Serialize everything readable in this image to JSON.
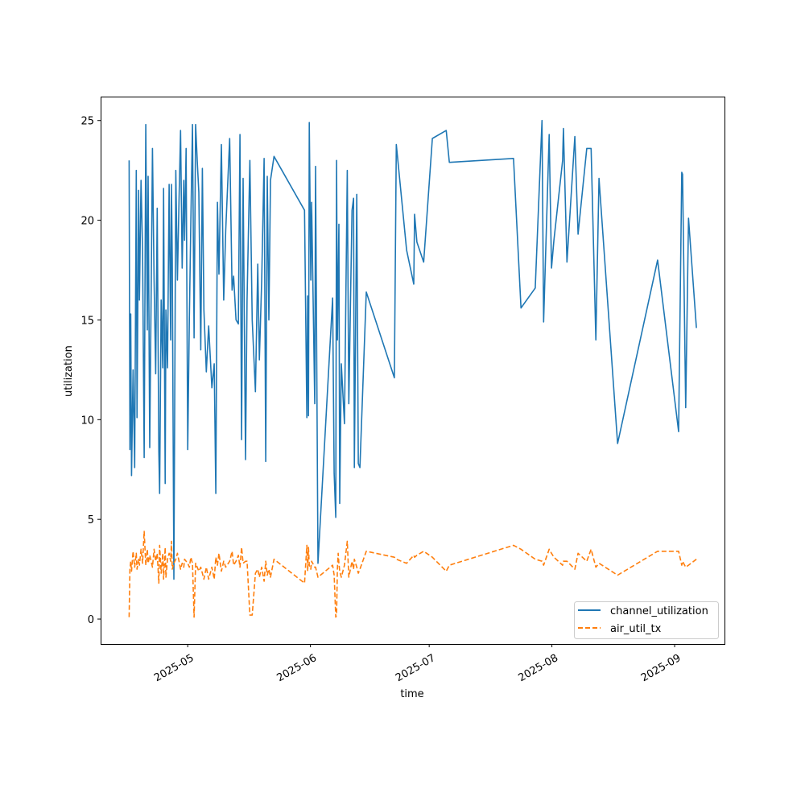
{
  "chart_data": {
    "type": "line",
    "title": "",
    "xlabel": "time",
    "ylabel": "utilization",
    "x_unit": "days since 2025-05-01",
    "xlim": [
      -22.0,
      135.6
    ],
    "ylim": [
      -1.25,
      26.2
    ],
    "grid": false,
    "legend_placement": "lower-right",
    "xticks": [
      {
        "value": 0,
        "label": "2025-05"
      },
      {
        "value": 31,
        "label": "2025-06"
      },
      {
        "value": 61,
        "label": "2025-07"
      },
      {
        "value": 92,
        "label": "2025-08"
      },
      {
        "value": 123,
        "label": "2025-09"
      }
    ],
    "yticks": [
      {
        "value": 0,
        "label": "0"
      },
      {
        "value": 5,
        "label": "5"
      },
      {
        "value": 10,
        "label": "10"
      },
      {
        "value": 15,
        "label": "15"
      },
      {
        "value": 20,
        "label": "20"
      },
      {
        "value": 25,
        "label": "25"
      }
    ],
    "x": [
      -14.8,
      -14.6,
      -14.4,
      -14.2,
      -13.8,
      -13.4,
      -13.0,
      -12.8,
      -12.4,
      -12.2,
      -11.8,
      -11.4,
      -11.0,
      -10.6,
      -10.2,
      -10.0,
      -9.6,
      -8.9,
      -8.5,
      -8.1,
      -7.7,
      -7.3,
      -7.1,
      -6.7,
      -6.3,
      -6.1,
      -5.7,
      -5.5,
      -5.1,
      -4.7,
      -4.3,
      -4.1,
      -3.9,
      -3.5,
      -3.0,
      -2.6,
      -2.2,
      -1.8,
      -1.4,
      -1.0,
      -0.8,
      -0.4,
      0,
      0.4,
      0.8,
      1.2,
      1.6,
      2.0,
      2.4,
      2.8,
      3.3,
      3.7,
      4.1,
      4.7,
      5.3,
      6.1,
      6.7,
      7.1,
      7.5,
      7.9,
      8.5,
      9.1,
      9.6,
      10.6,
      11.2,
      11.6,
      12.2,
      12.8,
      13.2,
      13.6,
      14.0,
      14.6,
      15.0,
      15.7,
      16.3,
      17.1,
      17.7,
      18.1,
      18.7,
      19.3,
      19.7,
      20.1,
      20.5,
      20.9,
      21.8,
      29.5,
      30.1,
      30.3,
      30.5,
      30.7,
      31.1,
      31.3,
      32.1,
      32.3,
      32.9,
      36.6,
      37.0,
      37.4,
      37.6,
      37.8,
      38.0,
      38.2,
      38.4,
      38.8,
      39.6,
      40.3,
      40.7,
      41.5,
      41.9,
      42.1,
      42.7,
      43.1,
      43.5,
      45.1,
      52.2,
      52.7,
      55.3,
      57.1,
      57.3,
      57.9,
      59.6,
      61.8,
      65.3,
      66.1,
      82.3,
      84.2,
      87.8,
      89.5,
      89.9,
      91.3,
      91.9,
      92.5,
      94.7,
      94.9,
      95.8,
      97.8,
      98.6,
      100.8,
      101.9,
      103.1,
      103.9,
      108.6,
      118.7,
      124.0,
      124.8,
      125.0,
      125.8,
      126.5,
      128.5
    ],
    "series": [
      {
        "name": "channel_utilization",
        "color": "#1f77b4",
        "style": "solid",
        "values": [
          23,
          8.5,
          15.3,
          7.2,
          12.5,
          7.6,
          22.5,
          10.1,
          21.5,
          16,
          22,
          18.5,
          8.1,
          24.8,
          14.5,
          22.2,
          8.6,
          23.6,
          17,
          12.3,
          20.6,
          8.4,
          6.3,
          16,
          12.6,
          21.6,
          6.8,
          15.5,
          12.6,
          21.8,
          14,
          21.8,
          18,
          2,
          22.5,
          17,
          21,
          24.5,
          17.6,
          22,
          19,
          23.6,
          8.5,
          15,
          20,
          24.8,
          14.1,
          24.8,
          23,
          21.4,
          13.5,
          22.6,
          15.5,
          12.4,
          14.7,
          11.6,
          12.8,
          6.3,
          20.9,
          17.3,
          23.8,
          16,
          19.5,
          24.1,
          16.5,
          17.2,
          15,
          14.8,
          24.3,
          9,
          22.1,
          8,
          16,
          23,
          15,
          11.4,
          17.8,
          13,
          17,
          23.1,
          7.9,
          22.2,
          15,
          22,
          23.2,
          20.5,
          10.1,
          16.2,
          10.2,
          24.9,
          17,
          20.9,
          10.8,
          22.7,
          2.8,
          16.1,
          7.3,
          5.1,
          23,
          14,
          17,
          19.8,
          5.8,
          12.8,
          9.8,
          22.5,
          10.8,
          20.5,
          21.1,
          7.6,
          21.3,
          7.8,
          7.6,
          16.4,
          12.1,
          23.8,
          18.5,
          16.8,
          20.3,
          18.9,
          17.9,
          24.1,
          24.5,
          22.9,
          23.1,
          15.6,
          16.6,
          25,
          14.9,
          24.3,
          17.6,
          19,
          23,
          24.6,
          17.9,
          24.2,
          19.3,
          23.6,
          23.6,
          14,
          22.1,
          8.8,
          18,
          9.4,
          22.4,
          22.3,
          10.6,
          20.1,
          14.6
        ]
      },
      {
        "name": "air_util_tx",
        "color": "#ff7f0e",
        "style": "dashed",
        "values": [
          0.1,
          2.5,
          2.9,
          2.4,
          3.4,
          2.6,
          3.3,
          2.5,
          3.0,
          2.7,
          3.5,
          2.8,
          4.4,
          2.7,
          3.5,
          2.8,
          3.2,
          2.6,
          3.5,
          2.9,
          3.3,
          1.8,
          3.7,
          2.3,
          3.3,
          2.0,
          3.6,
          2.1,
          3.0,
          3.3,
          2.9,
          3.9,
          2.5,
          2.8,
          3.0,
          3.3,
          2.9,
          2.5,
          2.8,
          2.6,
          3.0,
          2.9,
          2.8,
          2.6,
          3.1,
          2.8,
          0.1,
          2.8,
          2.6,
          2.4,
          2.6,
          2.3,
          2.0,
          2.6,
          2.0,
          2.6,
          2.0,
          3.1,
          2.7,
          3.3,
          2.4,
          2.9,
          2.6,
          2.9,
          3.4,
          2.7,
          2.9,
          3.2,
          2.6,
          3.6,
          2.8,
          2.9,
          2.9,
          0.2,
          0.2,
          2.3,
          2.5,
          2.1,
          2.6,
          1.9,
          2.9,
          2.2,
          2.5,
          2.1,
          3.0,
          1.8,
          3.7,
          2.4,
          3.6,
          2.7,
          2.5,
          2.9,
          2.6,
          2.6,
          2.1,
          2.7,
          2.2,
          0.1,
          0.2,
          2.5,
          3.3,
          2.8,
          2.4,
          2.1,
          2.7,
          3.9,
          2.1,
          2.9,
          2.5,
          3.0,
          2.6,
          2.3,
          2.5,
          3.4,
          3.1,
          3.0,
          2.8,
          3.2,
          3.1,
          3.2,
          3.4,
          3.1,
          2.4,
          2.7,
          3.7,
          3.5,
          3.0,
          2.9,
          2.7,
          3.5,
          3.3,
          3.1,
          2.7,
          2.9,
          2.9,
          2.5,
          3.3,
          2.9,
          3.5,
          2.6,
          2.8,
          2.2,
          3.4,
          3.4,
          2.7,
          2.9,
          2.6,
          2.7,
          3.0
        ]
      }
    ]
  }
}
